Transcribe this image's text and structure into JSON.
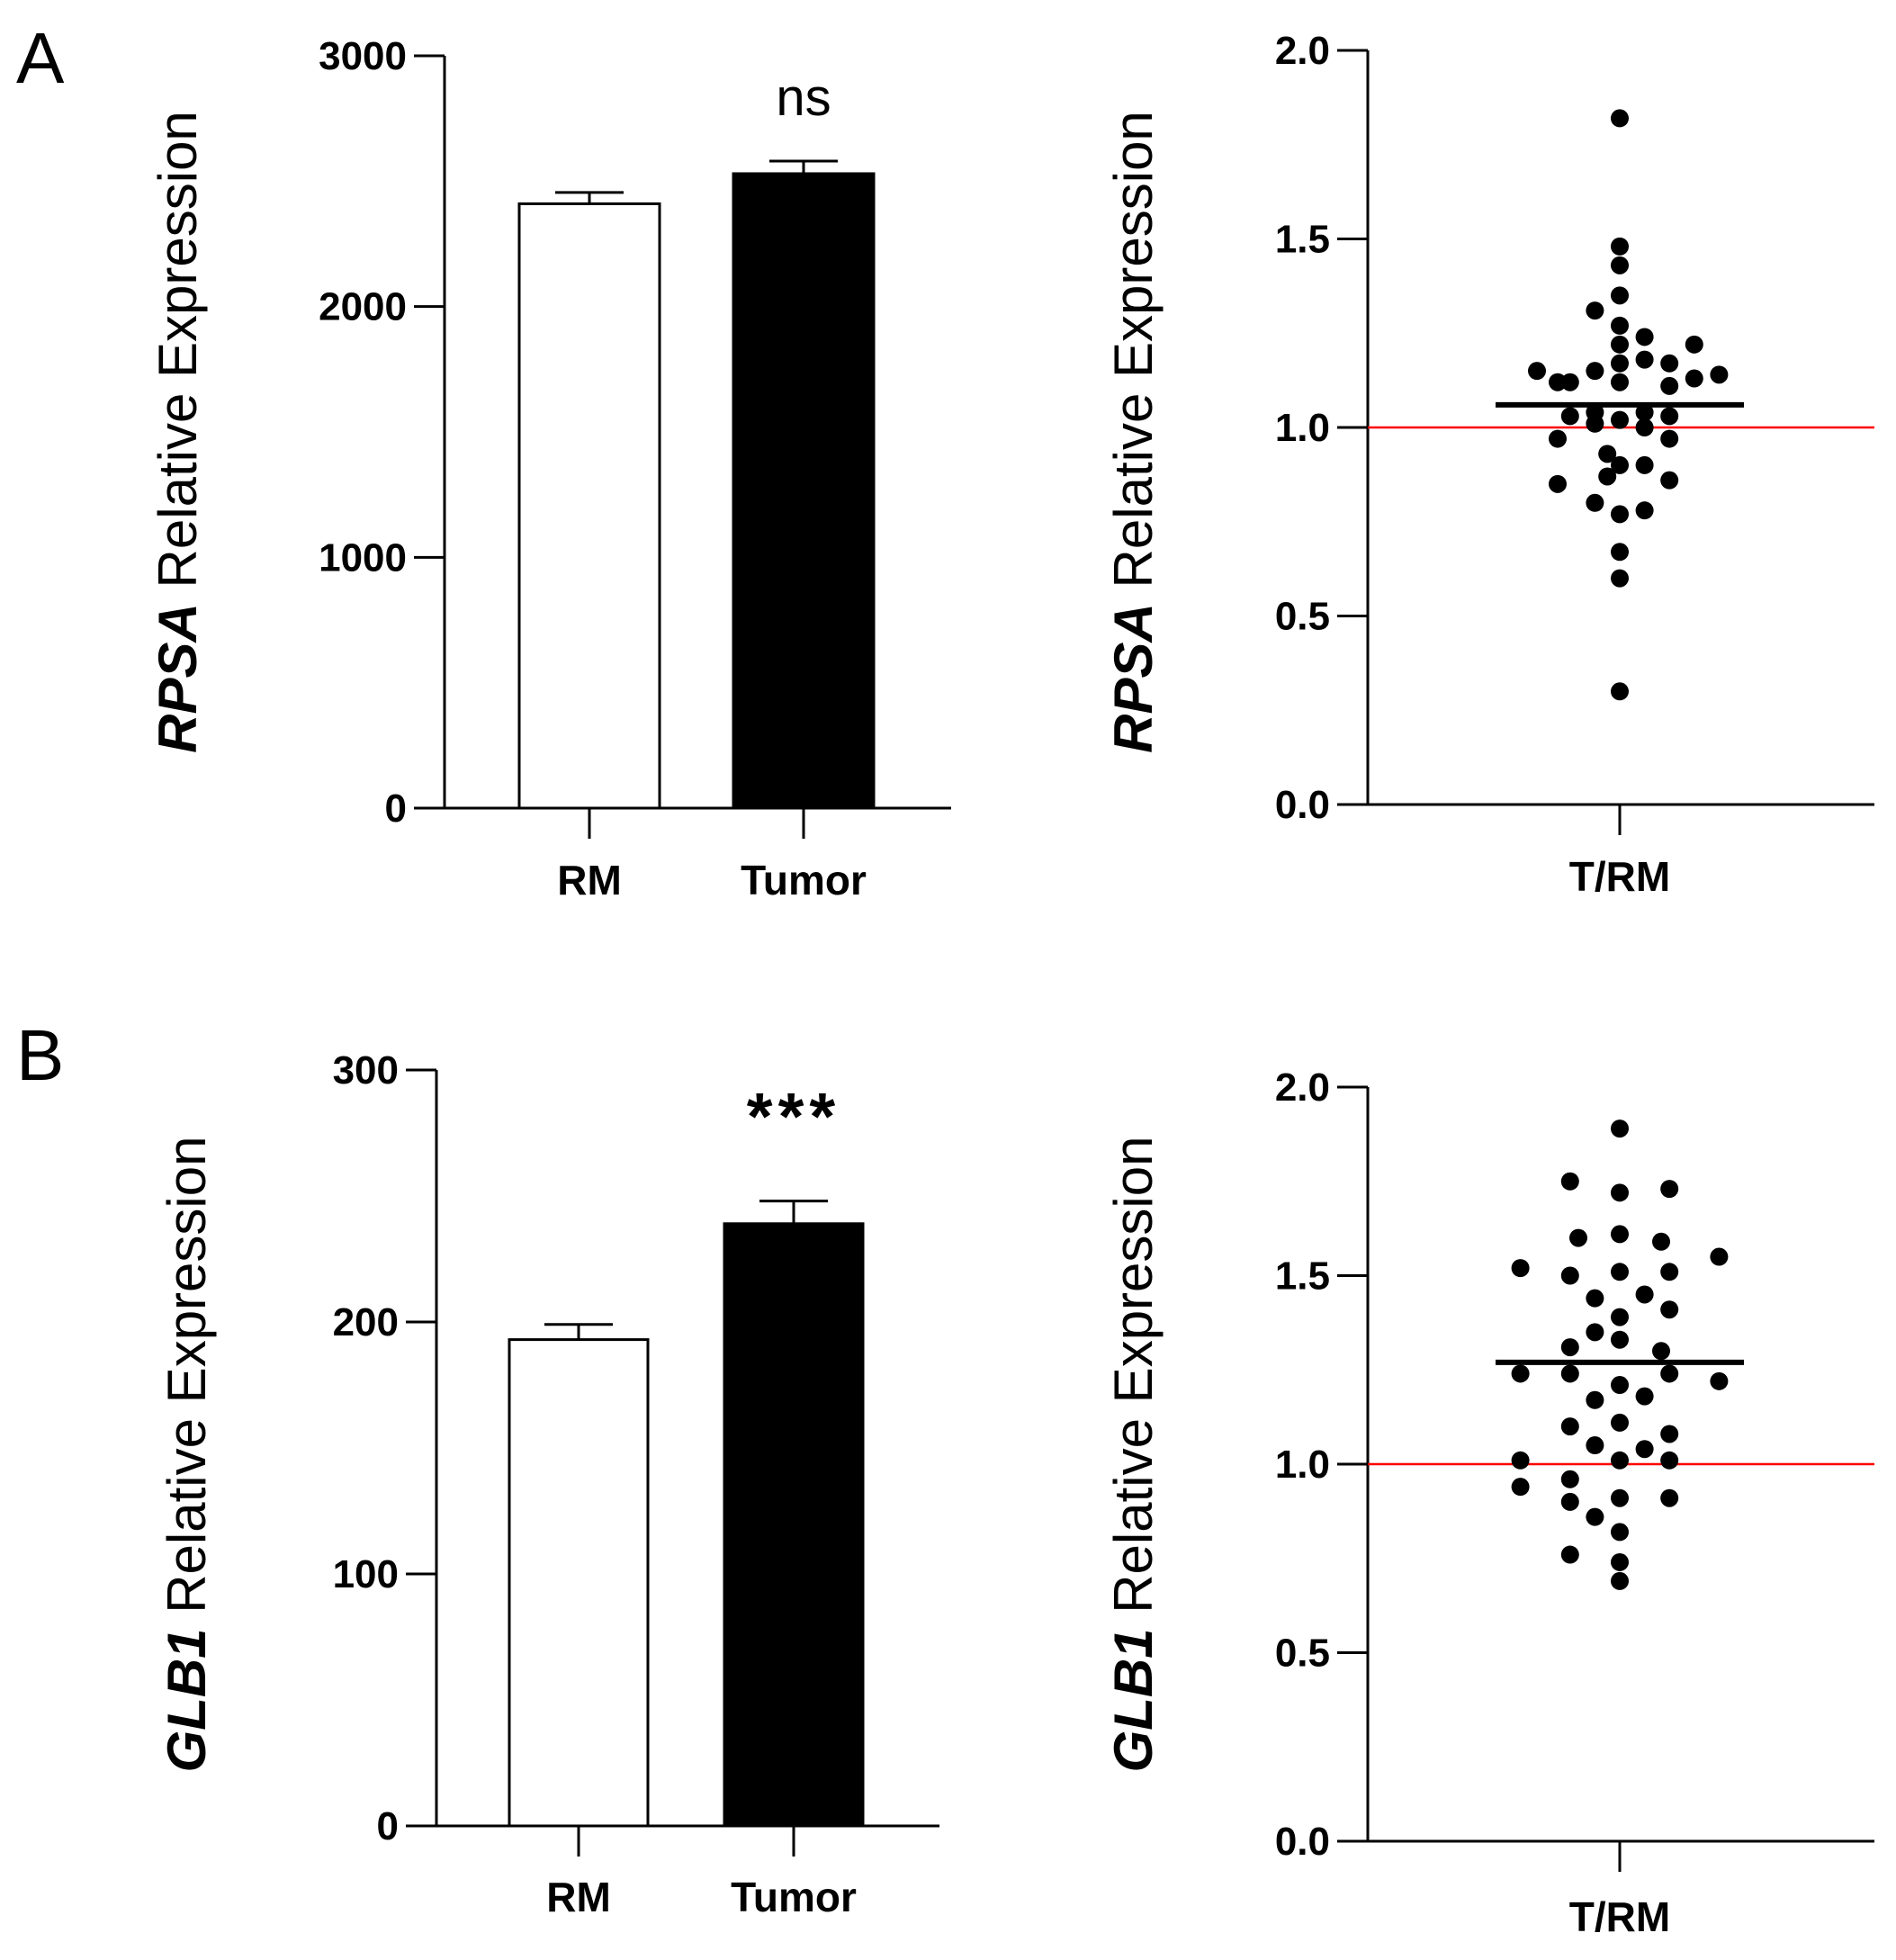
{
  "figure": {
    "panels": [
      {
        "letter": "A"
      },
      {
        "letter": "B"
      }
    ]
  },
  "chart_data": [
    {
      "type": "bar",
      "panel": "A",
      "categories": [
        "RM",
        "Tumor"
      ],
      "values": [
        2410,
        2530
      ],
      "errors": [
        45,
        50
      ],
      "fills": [
        "#ffffff",
        "#000000"
      ],
      "gene": "RPSA",
      "ylabel_rest": " Relative Expression",
      "ylim": [
        0,
        3000
      ],
      "yticks": [
        0,
        1000,
        2000,
        3000
      ],
      "significance": "ns"
    },
    {
      "type": "scatter",
      "panel": "A",
      "category": "T/RM",
      "gene": "RPSA",
      "ylabel_rest": " Relative Expression",
      "ylim": [
        0,
        2.0
      ],
      "yticks": [
        "0.0",
        "0.5",
        "1.0",
        "1.5",
        "2.0"
      ],
      "mean": 1.06,
      "reference_line": {
        "value": 1.0,
        "color": "#ff0000"
      },
      "points": [
        {
          "offset": 0.0,
          "y": 1.82
        },
        {
          "offset": 0.0,
          "y": 1.48
        },
        {
          "offset": 0.0,
          "y": 1.43
        },
        {
          "offset": -0.06,
          "y": 1.31
        },
        {
          "offset": 0.0,
          "y": 1.35
        },
        {
          "offset": 0.0,
          "y": 1.27
        },
        {
          "offset": 0.0,
          "y": 1.22
        },
        {
          "offset": 0.06,
          "y": 1.24
        },
        {
          "offset": -0.2,
          "y": 1.15
        },
        {
          "offset": -0.12,
          "y": 1.12
        },
        {
          "offset": -0.06,
          "y": 1.15
        },
        {
          "offset": 0.0,
          "y": 1.17
        },
        {
          "offset": 0.06,
          "y": 1.18
        },
        {
          "offset": 0.12,
          "y": 1.17
        },
        {
          "offset": 0.18,
          "y": 1.22
        },
        {
          "offset": 0.24,
          "y": 1.14
        },
        {
          "offset": -0.15,
          "y": 1.12
        },
        {
          "offset": 0.0,
          "y": 1.12
        },
        {
          "offset": 0.12,
          "y": 1.11
        },
        {
          "offset": 0.18,
          "y": 1.13
        },
        {
          "offset": -0.06,
          "y": 1.04
        },
        {
          "offset": 0.06,
          "y": 1.04
        },
        {
          "offset": -0.12,
          "y": 1.03
        },
        {
          "offset": 0.0,
          "y": 1.02
        },
        {
          "offset": 0.12,
          "y": 1.03
        },
        {
          "offset": -0.15,
          "y": 0.97
        },
        {
          "offset": -0.06,
          "y": 1.01
        },
        {
          "offset": 0.06,
          "y": 1.0
        },
        {
          "offset": 0.12,
          "y": 0.97
        },
        {
          "offset": -0.03,
          "y": 0.93
        },
        {
          "offset": 0.0,
          "y": 0.9
        },
        {
          "offset": -0.15,
          "y": 0.85
        },
        {
          "offset": -0.03,
          "y": 0.87
        },
        {
          "offset": 0.06,
          "y": 0.9
        },
        {
          "offset": 0.12,
          "y": 0.86
        },
        {
          "offset": -0.06,
          "y": 0.8
        },
        {
          "offset": 0.0,
          "y": 0.77
        },
        {
          "offset": 0.06,
          "y": 0.78
        },
        {
          "offset": 0.0,
          "y": 0.67
        },
        {
          "offset": 0.0,
          "y": 0.6
        },
        {
          "offset": 0.0,
          "y": 0.3
        }
      ]
    },
    {
      "type": "bar",
      "panel": "B",
      "categories": [
        "RM",
        "Tumor"
      ],
      "values": [
        193,
        239
      ],
      "errors": [
        6,
        9
      ],
      "fills": [
        "#ffffff",
        "#000000"
      ],
      "gene": "GLB1",
      "ylabel_rest": " Relative Expression",
      "ylim": [
        0,
        300
      ],
      "yticks": [
        0,
        100,
        200,
        300
      ],
      "significance": "***"
    },
    {
      "type": "scatter",
      "panel": "B",
      "category": "T/RM",
      "gene": "GLB1",
      "ylabel_rest": " Relative Expression",
      "ylim": [
        0,
        2.0
      ],
      "yticks": [
        "0.0",
        "0.5",
        "1.0",
        "1.5",
        "2.0"
      ],
      "mean": 1.27,
      "reference_line": {
        "value": 1.0,
        "color": "#ff0000"
      },
      "points": [
        {
          "offset": 0.0,
          "y": 1.89
        },
        {
          "offset": -0.12,
          "y": 1.75
        },
        {
          "offset": 0.0,
          "y": 1.72
        },
        {
          "offset": 0.12,
          "y": 1.73
        },
        {
          "offset": -0.1,
          "y": 1.6
        },
        {
          "offset": 0.0,
          "y": 1.61
        },
        {
          "offset": 0.1,
          "y": 1.59
        },
        {
          "offset": -0.24,
          "y": 1.52
        },
        {
          "offset": -0.12,
          "y": 1.5
        },
        {
          "offset": 0.0,
          "y": 1.51
        },
        {
          "offset": 0.12,
          "y": 1.51
        },
        {
          "offset": 0.24,
          "y": 1.55
        },
        {
          "offset": -0.06,
          "y": 1.44
        },
        {
          "offset": 0.06,
          "y": 1.45
        },
        {
          "offset": 0.0,
          "y": 1.39
        },
        {
          "offset": 0.12,
          "y": 1.41
        },
        {
          "offset": -0.06,
          "y": 1.35
        },
        {
          "offset": 0.0,
          "y": 1.33
        },
        {
          "offset": -0.12,
          "y": 1.31
        },
        {
          "offset": 0.1,
          "y": 1.3
        },
        {
          "offset": -0.24,
          "y": 1.24
        },
        {
          "offset": -0.12,
          "y": 1.24
        },
        {
          "offset": 0.0,
          "y": 1.21
        },
        {
          "offset": 0.12,
          "y": 1.24
        },
        {
          "offset": 0.24,
          "y": 1.22
        },
        {
          "offset": -0.06,
          "y": 1.17
        },
        {
          "offset": 0.06,
          "y": 1.18
        },
        {
          "offset": -0.12,
          "y": 1.1
        },
        {
          "offset": 0.0,
          "y": 1.11
        },
        {
          "offset": 0.12,
          "y": 1.08
        },
        {
          "offset": -0.06,
          "y": 1.05
        },
        {
          "offset": 0.06,
          "y": 1.04
        },
        {
          "offset": -0.24,
          "y": 1.01
        },
        {
          "offset": 0.0,
          "y": 1.01
        },
        {
          "offset": 0.12,
          "y": 1.01
        },
        {
          "offset": -0.12,
          "y": 0.96
        },
        {
          "offset": -0.24,
          "y": 0.94
        },
        {
          "offset": -0.12,
          "y": 0.9
        },
        {
          "offset": 0.0,
          "y": 0.91
        },
        {
          "offset": 0.12,
          "y": 0.91
        },
        {
          "offset": -0.06,
          "y": 0.86
        },
        {
          "offset": 0.0,
          "y": 0.82
        },
        {
          "offset": -0.12,
          "y": 0.76
        },
        {
          "offset": 0.0,
          "y": 0.74
        },
        {
          "offset": 0.0,
          "y": 0.69
        }
      ]
    }
  ]
}
